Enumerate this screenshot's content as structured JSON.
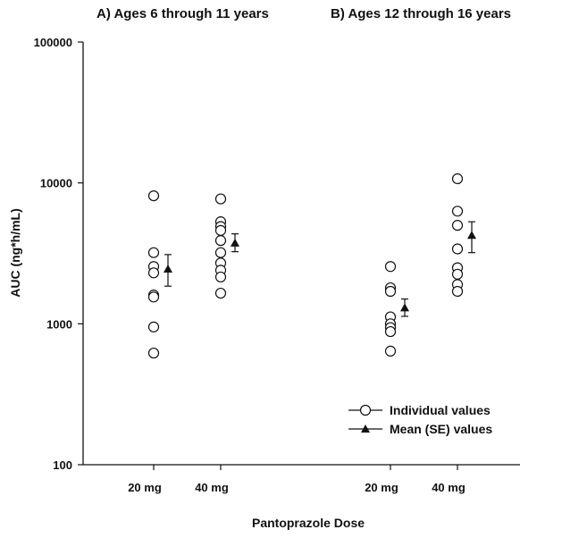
{
  "chart_data": {
    "type": "scatter",
    "titles": [
      "A) Ages 6 through 11 years",
      "B) Ages 12 through 16 years"
    ],
    "xlabel": "Pantoprazole Dose",
    "ylabel": "AUC (ng*h/mL)",
    "yscale": "log",
    "ylim": [
      100,
      100000
    ],
    "yticks": [
      {
        "value": 100,
        "label": "100"
      },
      {
        "value": 1000,
        "label": "1000"
      },
      {
        "value": 10000,
        "label": "10000"
      },
      {
        "value": 100000,
        "label": "100000"
      }
    ],
    "categories": [
      "20 mg",
      "40 mg",
      "20 mg",
      "40 mg"
    ],
    "legend": {
      "position": "bottom-right",
      "individual": "Individual values",
      "mean": "Mean (SE) values"
    },
    "series": [
      {
        "name": "Individual values",
        "marker": "open-circle",
        "values": [
          [
            8100,
            3200,
            2550,
            2300,
            1600,
            1550,
            950,
            620
          ],
          [
            7700,
            5300,
            4900,
            4600,
            3900,
            3200,
            2700,
            2400,
            2150,
            1650
          ],
          [
            2550,
            1800,
            1700,
            1120,
            1000,
            940,
            880,
            640
          ],
          [
            10700,
            6300,
            5000,
            3400,
            2500,
            2250,
            1900,
            1700
          ]
        ]
      },
      {
        "name": "Mean (SE) values",
        "marker": "filled-triangle",
        "values": [
          {
            "mean": 2450,
            "low": 1850,
            "high": 3100
          },
          {
            "mean": 3750,
            "low": 3250,
            "high": 4350
          },
          {
            "mean": 1300,
            "low": 1130,
            "high": 1500
          },
          {
            "mean": 4250,
            "low": 3200,
            "high": 5300
          }
        ]
      }
    ],
    "colors": {
      "ink": "#111111",
      "background": "#ffffff"
    }
  }
}
